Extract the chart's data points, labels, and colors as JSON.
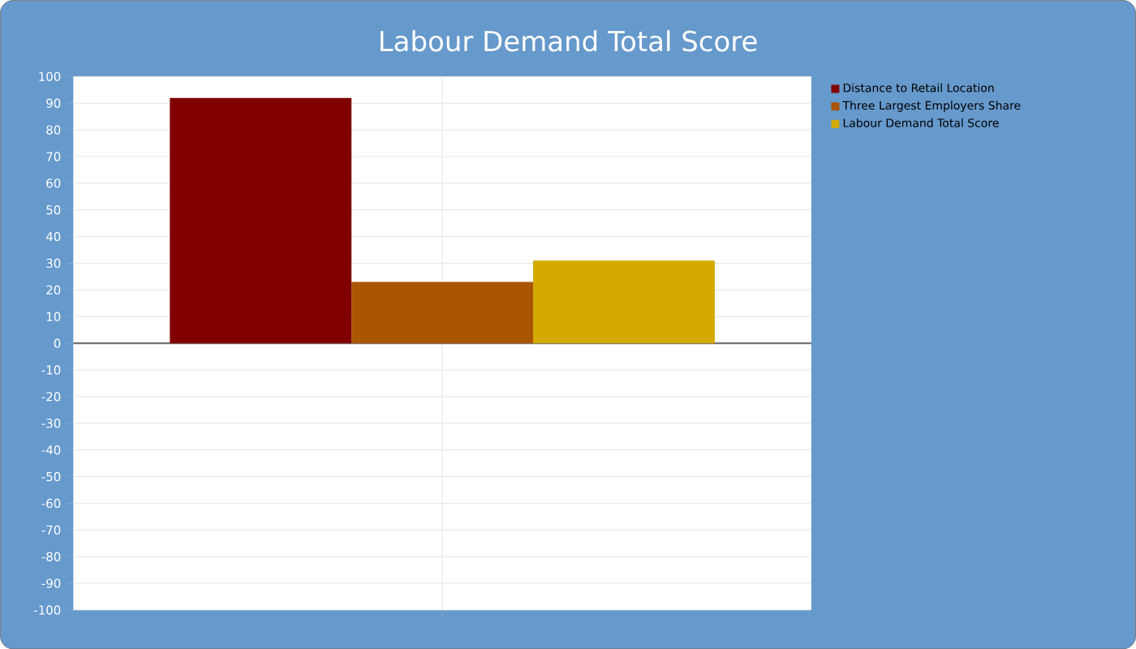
{
  "chart_data": {
    "type": "bar",
    "title": "Labour Demand Total Score",
    "categories": [
      null
    ],
    "series": [
      {
        "name": "Distance to Retail Location",
        "color": "#800000",
        "values": [
          92
        ]
      },
      {
        "name": "Three Largest Employers Share",
        "color": "#aa5500",
        "values": [
          23
        ]
      },
      {
        "name": "Labour Demand Total Score",
        "color": "#d4aa00",
        "values": [
          31
        ]
      }
    ],
    "ylim": [
      -100,
      100
    ],
    "yticks": [
      -100,
      -90,
      -80,
      -70,
      -60,
      -50,
      -40,
      -30,
      -20,
      -10,
      0,
      10,
      20,
      30,
      40,
      50,
      60,
      70,
      80,
      90,
      100
    ],
    "grid": true,
    "legend": "right"
  }
}
